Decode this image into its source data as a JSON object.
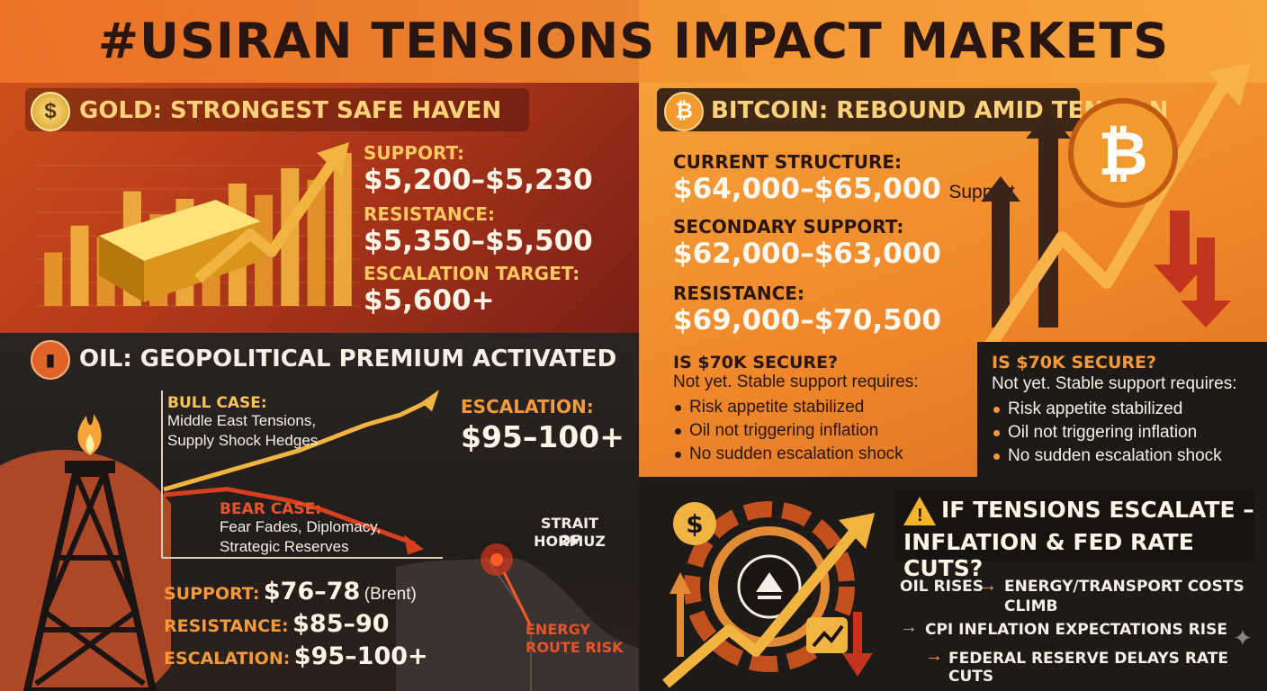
{
  "title": "#USIRAN TENSIONS IMPACT MARKETS",
  "icons": {
    "gold": "dollar-coin-icon",
    "bitcoin": "bitcoin-icon",
    "oil": "oil-barrel-icon",
    "warning": "warning-triangle-icon",
    "fed": "federal-reserve-seal-icon"
  },
  "colors": {
    "gold_text": "#ffd27a",
    "accent_orange": "#f59a3a",
    "dark_text": "#2a1610",
    "light_text": "#f5efe6"
  },
  "gold": {
    "heading": "GOLD: STRONGEST SAFE HAVEN",
    "support_label": "SUPPORT:",
    "support_value": "$5,200–$5,230",
    "resistance_label": "RESISTANCE:",
    "resistance_value": "$5,350–$5,500",
    "target_label": "ESCALATION TARGET:",
    "target_value": "$5,600+"
  },
  "bitcoin": {
    "heading": "BITCOIN: REBOUND AMID TENSION",
    "current_label": "CURRENT STRUCTURE:",
    "current_value": "$64,000–$65,000",
    "current_suffix": "Support",
    "secondary_label": "SECONDARY SUPPORT:",
    "secondary_value": "$62,000–$63,000",
    "resistance_label": "RESISTANCE:",
    "resistance_value": "$69,000–$70,500",
    "question": "IS $70K SECURE?",
    "answer": "Not yet. Stable support requires:",
    "conditions": [
      "Risk appetite stabilized",
      "Oil not triggering inflation",
      "No sudden escalation shock"
    ]
  },
  "oil": {
    "heading": "OIL: GEOPOLITICAL PREMIUM ACTIVATED",
    "bull_label": "BULL CASE:",
    "bull_text_1": "Middle East Tensions,",
    "bull_text_2": "Supply Shock Hedges",
    "bear_label": "BEAR CASE:",
    "bear_text_1": "Fear Fades, Diplomacy,",
    "bear_text_2": "Strategic Reserves",
    "escalation_label": "ESCALATION:",
    "escalation_value": "$95–100+",
    "strait_1": "STRAIT OF",
    "strait_2": "HORMUZ",
    "risk_1": "ENERGY",
    "risk_2": "ROUTE RISK",
    "support_label": "SUPPORT:",
    "support_value": "$76–78",
    "support_note": "(Brent)",
    "resistance_label": "RESISTANCE:",
    "resistance_value": "$85–90",
    "esc_label": "ESCALATION:",
    "esc_value": "$95–100+"
  },
  "escalate": {
    "heading_1": "IF TENSIONS ESCALATE –",
    "heading_2": "INFLATION & FED RATE CUTS?",
    "step1_a": "OIL RISES",
    "step1_b_1": "ENERGY/TRANSPORT COSTS",
    "step1_b_2": "CLIMB",
    "step2": "CPI INFLATION EXPECTATIONS RISE",
    "step3": "FEDERAL RESERVE DELAYS RATE CUTS"
  },
  "gold_chart": {
    "type": "bar",
    "values": [
      28,
      42,
      36,
      60,
      48,
      56,
      50,
      64,
      58,
      72,
      66,
      80
    ]
  },
  "oil_chart": {
    "type": "line",
    "series": [
      {
        "values": [
          40,
          46,
          52,
          58,
          64,
          72,
          80,
          86,
          96
        ]
      },
      {
        "values": [
          40,
          42,
          44,
          40,
          36,
          30,
          22,
          14,
          6
        ]
      }
    ]
  }
}
